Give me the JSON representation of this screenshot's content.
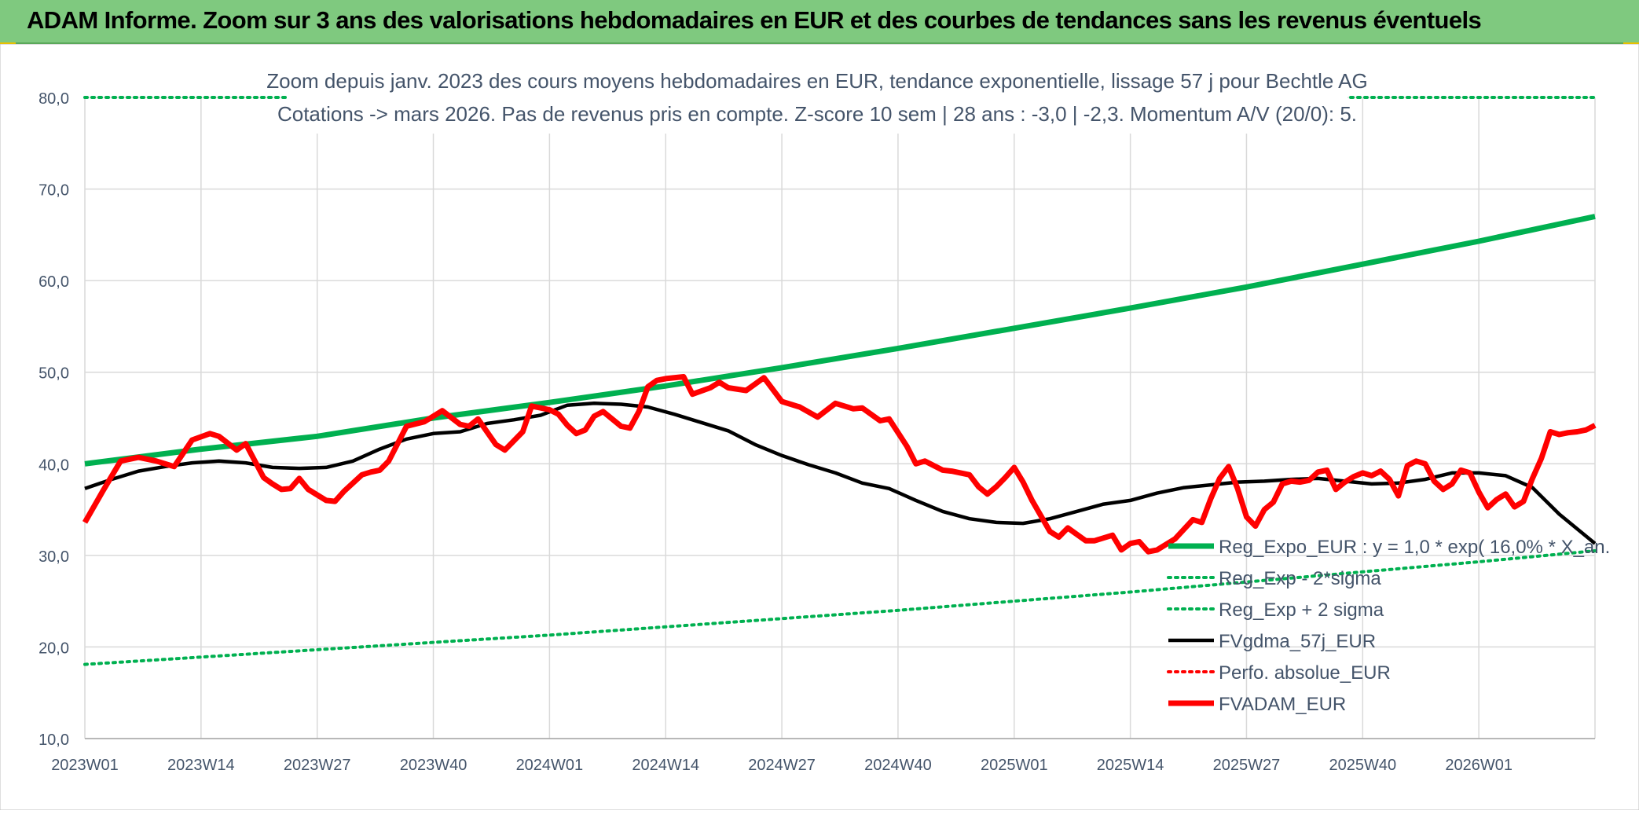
{
  "banner": {
    "title": "ADAM Informe. Zoom sur 3 ans des valorisations hebdomadaires en EUR et des courbes de tendances sans les revenus éventuels"
  },
  "colors": {
    "banner_bg": "#7fc97f",
    "reg_expo": "#00b050",
    "sigma": "#00b050",
    "fvgdma": "#000000",
    "perfo": "#ff0000",
    "fvadam": "#ff0000",
    "grid": "#d9d9d9",
    "text": "#44546a"
  },
  "chart_data": {
    "type": "line",
    "title_line1": "Zoom depuis janv. 2023 des cours moyens hebdomadaires en EUR, tendance exponentielle, lissage 57 j pour Bechtle AG",
    "title_line2": "Cotations -> mars 2026. Pas de revenus pris en compte. Z-score 10 sem | 28 ans : -3,0 | -2,3. Momentum A/V (20/0): 5.",
    "ylim": [
      10,
      80
    ],
    "yticks": [
      "10,0",
      "20,0",
      "30,0",
      "40,0",
      "50,0",
      "60,0",
      "70,0",
      "80,0"
    ],
    "ytick_values": [
      10,
      20,
      30,
      40,
      50,
      60,
      70,
      80
    ],
    "xlim": [
      0,
      169
    ],
    "xticks": [
      "2023W01",
      "2023W14",
      "2023W27",
      "2023W40",
      "2024W01",
      "2024W14",
      "2024W27",
      "2024W40",
      "2025W01",
      "2025W14",
      "2025W27",
      "2025W40",
      "2026W01"
    ],
    "xtick_values": [
      0,
      13,
      26,
      39,
      52,
      65,
      78,
      91,
      104,
      117,
      130,
      143,
      156
    ],
    "legend_position": "bottom-right",
    "grid": true,
    "series": [
      {
        "name": "Reg_Expo_EUR : y = 1,0 * exp( 16,0% *  X_an.",
        "style": "solid-thick",
        "color": "#00b050",
        "x": [
          0,
          13,
          26,
          39,
          52,
          65,
          78,
          91,
          104,
          117,
          130,
          143,
          156,
          169
        ],
        "values": [
          40.0,
          41.6,
          43.0,
          45.0,
          46.7,
          48.5,
          50.5,
          52.6,
          54.8,
          57.0,
          59.3,
          61.8,
          64.3,
          67.0
        ]
      },
      {
        "name": "Reg_Exp - 2*sigma",
        "style": "dotted",
        "color": "#00b050",
        "x": [
          0,
          13,
          26,
          39,
          52,
          65,
          78,
          91,
          104,
          117,
          130,
          143,
          156,
          169
        ],
        "values": [
          18.1,
          18.9,
          19.7,
          20.5,
          21.3,
          22.2,
          23.1,
          24.0,
          25.0,
          26.0,
          27.1,
          28.2,
          29.3,
          30.5
        ]
      },
      {
        "name": "Reg_Exp + 2 sigma",
        "style": "dotted",
        "color": "#00b050",
        "x": [
          0,
          169
        ],
        "values": [
          80.0,
          80.0
        ]
      },
      {
        "name": "FVgdma_57j_EUR",
        "style": "solid",
        "color": "#000000",
        "x": [
          0,
          3,
          6,
          9,
          12,
          15,
          18,
          21,
          24,
          27,
          30,
          33,
          36,
          39,
          42,
          45,
          48,
          51,
          54,
          57,
          60,
          63,
          66,
          69,
          72,
          75,
          78,
          81,
          84,
          87,
          90,
          93,
          96,
          99,
          102,
          105,
          108,
          111,
          114,
          117,
          120,
          123,
          126,
          129,
          132,
          135,
          138,
          141,
          144,
          147,
          150,
          153,
          156,
          159,
          162,
          165,
          169
        ],
        "values": [
          37.3,
          38.3,
          39.2,
          39.7,
          40.1,
          40.3,
          40.1,
          39.6,
          39.5,
          39.6,
          40.3,
          41.6,
          42.7,
          43.3,
          43.5,
          44.4,
          44.8,
          45.3,
          46.4,
          46.6,
          46.5,
          46.2,
          45.4,
          44.5,
          43.6,
          42.1,
          40.9,
          39.9,
          39.0,
          37.9,
          37.3,
          36.0,
          34.8,
          34.0,
          33.6,
          33.5,
          34.0,
          34.8,
          35.6,
          36.0,
          36.8,
          37.4,
          37.7,
          38.0,
          38.1,
          38.3,
          38.4,
          38.1,
          37.8,
          37.9,
          38.3,
          39.0,
          39.0,
          38.7,
          37.4,
          34.5,
          31.3
        ]
      },
      {
        "name": "Perfo. absolue_EUR",
        "style": "dotted",
        "color": "#ff0000",
        "x": [],
        "values": []
      },
      {
        "name": "FVADAM_EUR",
        "style": "solid-thick",
        "color": "#ff0000",
        "x": [
          0,
          2,
          4,
          6,
          8,
          10,
          12,
          14,
          15,
          17,
          18,
          20,
          21,
          22,
          23,
          24,
          25,
          27,
          28,
          29,
          31,
          32,
          33,
          34,
          36,
          38,
          40,
          42,
          43,
          44,
          46,
          47,
          49,
          50,
          52,
          53,
          54,
          55,
          56,
          57,
          58,
          60,
          61,
          62,
          63,
          64,
          65,
          67,
          68,
          70,
          71,
          72,
          74,
          76,
          78,
          80,
          82,
          84,
          86,
          87,
          89,
          90,
          92,
          93,
          94,
          96,
          97,
          98,
          99,
          100,
          101,
          102,
          103,
          104,
          105,
          106,
          108,
          109,
          110,
          112,
          113,
          115,
          116,
          117,
          118,
          119,
          120,
          121,
          122,
          124,
          125,
          126,
          127,
          128,
          129,
          130,
          131,
          132,
          133,
          134,
          135,
          136,
          137,
          138,
          139,
          140,
          141,
          142,
          143,
          144,
          145,
          146,
          147,
          148,
          149,
          150,
          151,
          152,
          153,
          154,
          155,
          156,
          157,
          158,
          159,
          160,
          161,
          162,
          163,
          164,
          165,
          166,
          167,
          168,
          169
        ],
        "values": [
          33.6,
          37.0,
          40.3,
          40.7,
          40.3,
          39.7,
          42.6,
          43.3,
          43.0,
          41.5,
          42.2,
          38.5,
          37.8,
          37.2,
          37.3,
          38.4,
          37.2,
          36.0,
          35.9,
          37.0,
          38.8,
          39.1,
          39.3,
          40.3,
          44.1,
          44.6,
          45.8,
          44.3,
          44.1,
          44.9,
          42.1,
          41.5,
          43.5,
          46.3,
          45.9,
          45.4,
          44.2,
          43.3,
          43.7,
          45.2,
          45.7,
          44.1,
          43.9,
          45.7,
          48.4,
          49.1,
          49.3,
          49.5,
          47.6,
          48.3,
          48.9,
          48.3,
          48.0,
          49.4,
          46.8,
          46.2,
          45.1,
          46.6,
          46.0,
          46.1,
          44.7,
          44.9,
          41.9,
          40.0,
          40.3,
          39.3,
          39.2,
          39.0,
          38.8,
          37.5,
          36.7,
          37.5,
          38.5,
          39.6,
          38.0,
          36.0,
          32.6,
          32.0,
          33.0,
          31.6,
          31.6,
          32.2,
          30.6,
          31.3,
          31.5,
          30.4,
          30.6,
          31.2,
          31.8,
          33.9,
          33.6,
          36.2,
          38.4,
          39.7,
          37.3,
          34.2,
          33.2,
          35.0,
          35.8,
          37.8,
          38.1,
          38.0,
          38.2,
          39.1,
          39.3,
          37.2,
          38.0,
          38.6,
          39.0,
          38.7,
          39.2,
          38.3,
          36.5,
          39.8,
          40.3,
          40.0,
          38.1,
          37.2,
          37.8,
          39.3,
          39.0,
          36.9,
          35.2,
          36.1,
          36.7,
          35.3,
          35.9,
          38.4,
          40.6,
          43.5,
          43.2,
          43.4,
          43.5,
          43.7,
          44.2
        ]
      }
    ]
  }
}
